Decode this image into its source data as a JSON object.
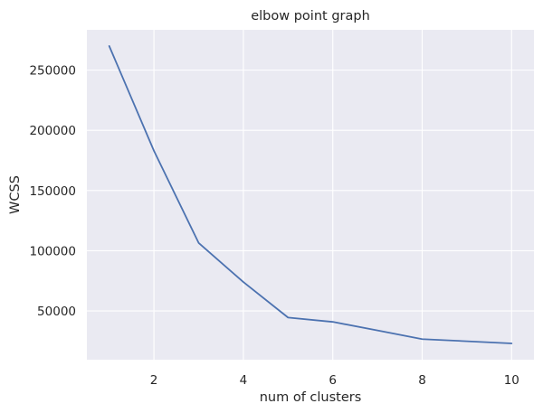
{
  "chart_data": {
    "type": "line",
    "title": "elbow point graph",
    "xlabel": "num of clusters",
    "ylabel": "WCSS",
    "x": [
      1,
      2,
      3,
      4,
      5,
      6,
      7,
      8,
      9,
      10
    ],
    "series": [
      {
        "values": [
          270000,
          183000,
          106500,
          74000,
          44500,
          40900,
          33800,
          26600,
          24800,
          23000
        ]
      }
    ],
    "xlim": [
      0.5,
      10.5
    ],
    "ylim": [
      9500,
      283500
    ],
    "xticks": [
      2,
      4,
      6,
      8,
      10
    ],
    "yticks": [
      50000,
      100000,
      150000,
      200000,
      250000
    ],
    "grid": true,
    "colors": {
      "line": "#4c72b0",
      "background": "#eaeaf2",
      "grid": "#ffffff",
      "text": "#262626"
    }
  }
}
